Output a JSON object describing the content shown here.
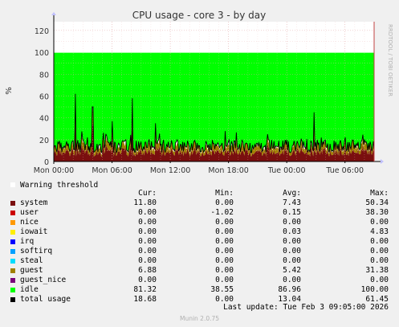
{
  "chart_data": {
    "type": "area",
    "title": "CPU usage - core 3 - by day",
    "ylabel": "%",
    "side_label": "RRDTOOL / TOBI OETIKER",
    "ylim": [
      0,
      128
    ],
    "yticks": [
      0,
      20,
      40,
      60,
      80,
      100,
      120
    ],
    "xticks": [
      "Mon 00:00",
      "Mon 06:00",
      "Mon 12:00",
      "Mon 18:00",
      "Tue 00:00",
      "Tue 06:00"
    ],
    "xtick_hours": [
      0,
      6,
      12,
      18,
      24,
      30
    ],
    "x_range_hours": [
      0,
      33
    ],
    "warning_threshold": 100,
    "grid": true,
    "colors": {
      "plot_bg": "#ffffff",
      "grid_minor": "#f0c0c0",
      "grid_major": "#e0a0a0",
      "axis": "#000000",
      "threshold": "#ffffff",
      "arrow": "#c0c0ff"
    },
    "series": [
      {
        "name": "system",
        "color": "#7a0f0f",
        "cur": "11.80",
        "min": "0.00",
        "avg": "7.43",
        "max": "50.34"
      },
      {
        "name": "user",
        "color": "#cc0000",
        "cur": "0.00",
        "min": "-1.02",
        "avg": "0.15",
        "max": "38.30"
      },
      {
        "name": "nice",
        "color": "#ff9900",
        "cur": "0.00",
        "min": "0.00",
        "avg": "0.00",
        "max": "0.00"
      },
      {
        "name": "iowait",
        "color": "#ffee00",
        "cur": "0.00",
        "min": "0.00",
        "avg": "0.03",
        "max": "4.83"
      },
      {
        "name": "irq",
        "color": "#0000ff",
        "cur": "0.00",
        "min": "0.00",
        "avg": "0.00",
        "max": "0.00"
      },
      {
        "name": "softirq",
        "color": "#00a0ff",
        "cur": "0.00",
        "min": "0.00",
        "avg": "0.00",
        "max": "0.00"
      },
      {
        "name": "steal",
        "color": "#00ddff",
        "cur": "0.00",
        "min": "0.00",
        "avg": "0.00",
        "max": "0.00"
      },
      {
        "name": "guest",
        "color": "#a08000",
        "cur": "6.88",
        "min": "0.00",
        "avg": "5.42",
        "max": "31.38"
      },
      {
        "name": "guest_nice",
        "color": "#7a007a",
        "cur": "0.00",
        "min": "0.00",
        "avg": "0.00",
        "max": "0.00"
      },
      {
        "name": "idle",
        "color": "#00ff00",
        "cur": "81.32",
        "min": "38.55",
        "avg": "86.96",
        "max": "100.00"
      },
      {
        "name": "total usage",
        "color": "#000000",
        "cur": "18.68",
        "min": "0.00",
        "avg": "13.04",
        "max": "61.45"
      }
    ],
    "spikes": [
      {
        "hour": 2.2,
        "value": 62
      },
      {
        "hour": 4.0,
        "value": 50
      },
      {
        "hour": 6.0,
        "value": 37
      },
      {
        "hour": 8.1,
        "value": 58
      },
      {
        "hour": 10.5,
        "value": 35
      },
      {
        "hour": 22.0,
        "value": 25
      },
      {
        "hour": 26.8,
        "value": 45
      }
    ]
  },
  "legend": {
    "warning_label": "Warning threshold",
    "col_cur": "Cur:",
    "col_min": "Min:",
    "col_avg": "Avg:",
    "col_max": "Max:"
  },
  "footer": {
    "last_update": "Last update: Tue Feb  3 09:05:00 2026",
    "munin": "Munin 2.0.75"
  }
}
